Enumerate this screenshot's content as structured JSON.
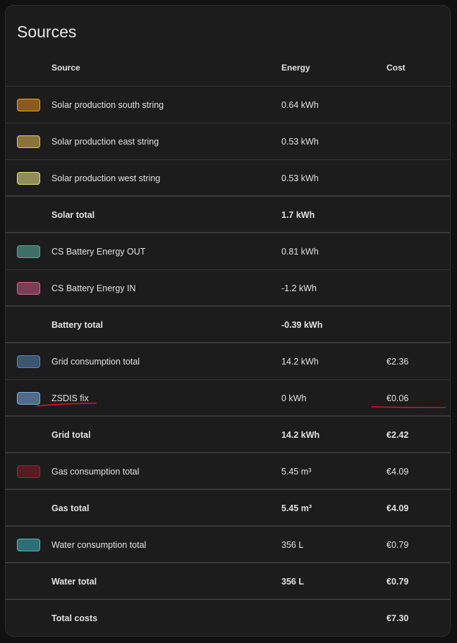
{
  "title": "Sources",
  "columns": {
    "source": "Source",
    "energy": "Energy",
    "cost": "Cost"
  },
  "rows": [
    {
      "source": "Solar production south string",
      "energy": "0.64 kWh",
      "cost": "",
      "color": "#8a5a1e",
      "border": "#f0a030"
    },
    {
      "source": "Solar production east string",
      "energy": "0.53 kWh",
      "cost": "",
      "color": "#8a7438",
      "border": "#e8c060"
    },
    {
      "source": "Solar production west string",
      "energy": "0.53 kWh",
      "cost": "",
      "color": "#8e8c58",
      "border": "#e6e27a"
    },
    {
      "source": "Solar total",
      "energy": "1.7 kWh",
      "cost": "",
      "total": true
    },
    {
      "source": "CS Battery Energy OUT",
      "energy": "0.81 kWh",
      "cost": "",
      "color": "#3f6e66",
      "border": "#5fa89a"
    },
    {
      "source": "CS Battery Energy IN",
      "energy": "-1.2 kWh",
      "cost": "",
      "color": "#7a3d55",
      "border": "#d06a8a"
    },
    {
      "source": "Battery total",
      "energy": "-0.39 kWh",
      "cost": "",
      "total": true
    },
    {
      "source": "Grid consumption total",
      "energy": "14.2 kWh",
      "cost": "€2.36",
      "color": "#3c5670",
      "border": "#5a88b5"
    },
    {
      "source": "ZSDIS fix",
      "energy": "0 kWh",
      "cost": "€0.06",
      "color": "#4f6a8a",
      "border": "#80aee0"
    },
    {
      "source": "Grid total",
      "energy": "14.2 kWh",
      "cost": "€2.42",
      "total": true
    },
    {
      "source": "Gas consumption total",
      "energy": "5.45 m³",
      "cost": "€4.09",
      "color": "#5a1a22",
      "border": "#8b2b38"
    },
    {
      "source": "Gas total",
      "energy": "5.45 m³",
      "cost": "€4.09",
      "total": true
    },
    {
      "source": "Water consumption total",
      "energy": "356 L",
      "cost": "€0.79",
      "color": "#2f6e75",
      "border": "#5ab8c4"
    },
    {
      "source": "Water total",
      "energy": "356 L",
      "cost": "€0.79",
      "total": true
    },
    {
      "source": "Total costs",
      "energy": "",
      "cost": "€7.30",
      "total": true
    }
  ],
  "annotation_color": "#e0101a"
}
